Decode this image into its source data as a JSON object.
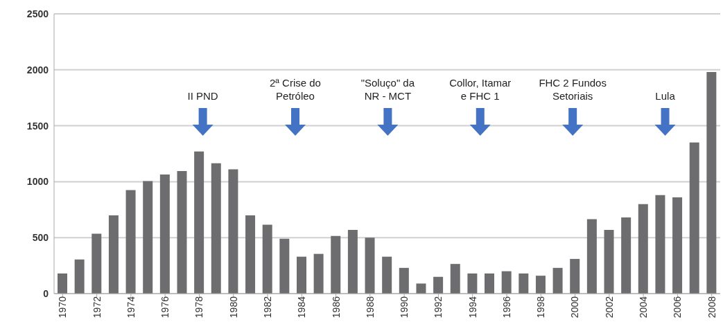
{
  "chart_data": {
    "type": "bar",
    "x": [
      1970,
      1971,
      1972,
      1973,
      1974,
      1975,
      1976,
      1977,
      1978,
      1979,
      1980,
      1981,
      1982,
      1983,
      1984,
      1985,
      1986,
      1987,
      1988,
      1989,
      1990,
      1991,
      1992,
      1993,
      1994,
      1995,
      1996,
      1997,
      1998,
      1999,
      2000,
      2001,
      2002,
      2003,
      2004,
      2005,
      2006,
      2007,
      2008
    ],
    "values": [
      180,
      305,
      535,
      700,
      925,
      1005,
      1065,
      1095,
      1270,
      1165,
      1110,
      700,
      615,
      490,
      330,
      355,
      515,
      570,
      500,
      330,
      230,
      90,
      150,
      265,
      180,
      180,
      200,
      180,
      160,
      230,
      310,
      665,
      570,
      680,
      800,
      880,
      860,
      1350,
      1980
    ],
    "color": "#6d6d6f",
    "xlim": [
      1969.5,
      2008.5
    ],
    "xticks": [
      1970,
      1972,
      1974,
      1976,
      1978,
      1980,
      1982,
      1984,
      1986,
      1988,
      1990,
      1992,
      1994,
      1996,
      1998,
      2000,
      2002,
      2004,
      2006,
      2008
    ],
    "ylim": [
      0,
      2500
    ],
    "yticks": [
      0,
      500,
      1000,
      1500,
      2000,
      2500
    ],
    "grid": "y",
    "annotations": [
      "II PND",
      "2ª Crise do\nPetróleo",
      "\"Soluço\" da\nNR - MCT",
      "Collor, Itamar\ne FHC 1",
      "FHC 2 Fundos\nSetoriais",
      "Lula"
    ]
  }
}
